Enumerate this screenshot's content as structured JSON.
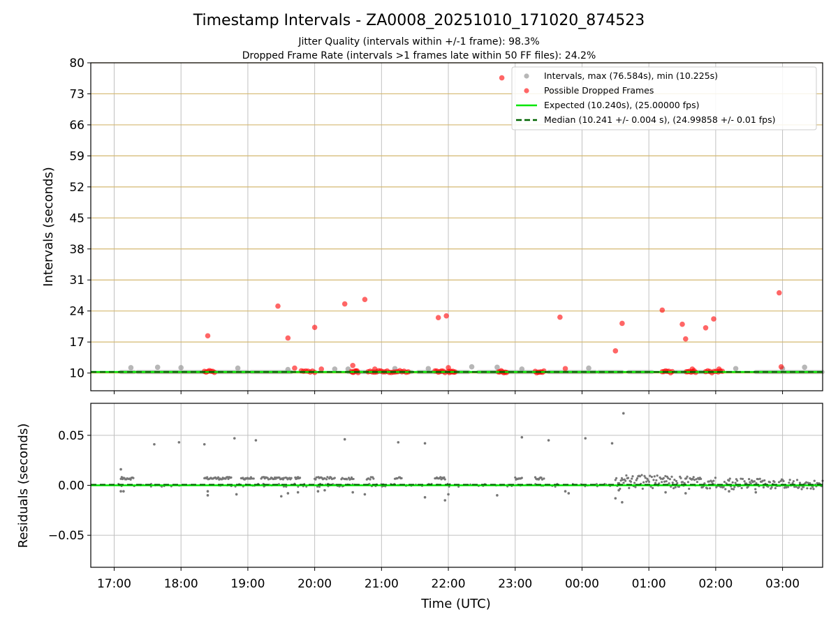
{
  "chart_data": {
    "type": "scatter",
    "title": "Timestamp Intervals - ZA0008_20251010_171020_874523",
    "subtitles": [
      "Jitter Quality (intervals within +/-1 frame): 98.3%",
      "Dropped Frame Rate (intervals >1 frames late within 50 FF files): 24.2%"
    ],
    "xlabel": "Time (UTC)",
    "x_unit": "hours since 17:00 UTC (10 Oct)",
    "xlim": [
      -0.35,
      10.6
    ],
    "xticks": [
      {
        "value": 0,
        "label": "17:00"
      },
      {
        "value": 1,
        "label": "18:00"
      },
      {
        "value": 2,
        "label": "19:00"
      },
      {
        "value": 3,
        "label": "20:00"
      },
      {
        "value": 4,
        "label": "21:00"
      },
      {
        "value": 5,
        "label": "22:00"
      },
      {
        "value": 6,
        "label": "23:00"
      },
      {
        "value": 7,
        "label": "00:00"
      },
      {
        "value": 8,
        "label": "01:00"
      },
      {
        "value": 9,
        "label": "02:00"
      },
      {
        "value": 10,
        "label": "03:00"
      }
    ],
    "top_panel": {
      "ylabel": "Intervals (seconds)",
      "ylim": [
        6.0,
        80.0
      ],
      "yticks": [
        10,
        17,
        24,
        31,
        38,
        45,
        52,
        59,
        66,
        73,
        80
      ],
      "gridline_color": "#d4b870",
      "expected_line": {
        "value": 10.24,
        "color": "#00e600",
        "name": "Expected (10.240s), (25.00000 fps)"
      },
      "median_line": {
        "value": 10.241,
        "color": "#006400",
        "name": "Median (10.241 +/- 0.004 s), (24.99858 +/- 0.01 fps)"
      },
      "intervals": {
        "name": "Intervals, max (76.584s), min (10.225s)",
        "color": "#999999",
        "band_segments": [
          [
            0.1,
            0.3
          ],
          [
            0.35,
            1.35
          ],
          [
            1.5,
            2.0
          ],
          [
            2.05,
            2.65
          ],
          [
            3.5,
            4.45
          ],
          [
            4.55,
            5.3
          ],
          [
            5.45,
            6.4
          ],
          [
            6.5,
            7.2
          ],
          [
            7.25,
            7.6
          ],
          [
            7.7,
            8.05
          ],
          [
            8.4,
            8.95
          ],
          [
            9.6,
            10.6
          ]
        ],
        "outliers": [
          {
            "x": 0.25,
            "y": 11.2
          },
          {
            "x": 0.65,
            "y": 11.3
          },
          {
            "x": 1.0,
            "y": 11.2
          },
          {
            "x": 1.85,
            "y": 11.1
          },
          {
            "x": 2.6,
            "y": 10.8
          },
          {
            "x": 3.5,
            "y": 10.9
          },
          {
            "x": 4.2,
            "y": 11.0
          },
          {
            "x": 4.7,
            "y": 11.0
          },
          {
            "x": 5.35,
            "y": 11.4
          },
          {
            "x": 5.73,
            "y": 11.3
          },
          {
            "x": 6.1,
            "y": 10.9
          },
          {
            "x": 7.1,
            "y": 11.1
          },
          {
            "x": 9.3,
            "y": 11.0
          },
          {
            "x": 10.0,
            "y": 11.0
          },
          {
            "x": 10.33,
            "y": 11.3
          },
          {
            "x": 3.3,
            "y": 10.9
          }
        ]
      },
      "dropped_frames": {
        "name": "Possible Dropped Frames",
        "color": "#ff0000",
        "clusters": [
          [
            1.35,
            1.5
          ],
          [
            2.8,
            3.0
          ],
          [
            3.55,
            3.65
          ],
          [
            3.8,
            4.4
          ],
          [
            4.8,
            4.95
          ],
          [
            5.0,
            5.1
          ],
          [
            5.75,
            5.87
          ],
          [
            6.3,
            6.43
          ],
          [
            8.2,
            8.35
          ],
          [
            8.56,
            8.7
          ],
          [
            8.85,
            9.1
          ]
        ],
        "points": [
          {
            "x": 1.4,
            "y": 18.4
          },
          {
            "x": 2.45,
            "y": 25.1
          },
          {
            "x": 2.6,
            "y": 17.9
          },
          {
            "x": 3.0,
            "y": 20.3
          },
          {
            "x": 3.45,
            "y": 25.6
          },
          {
            "x": 3.57,
            "y": 11.7
          },
          {
            "x": 3.75,
            "y": 26.6
          },
          {
            "x": 4.85,
            "y": 22.5
          },
          {
            "x": 4.97,
            "y": 22.9
          },
          {
            "x": 5.8,
            "y": 76.6
          },
          {
            "x": 6.67,
            "y": 22.6
          },
          {
            "x": 6.75,
            "y": 11.0
          },
          {
            "x": 7.5,
            "y": 15.0
          },
          {
            "x": 7.6,
            "y": 21.2
          },
          {
            "x": 8.2,
            "y": 24.2
          },
          {
            "x": 8.5,
            "y": 21.0
          },
          {
            "x": 8.55,
            "y": 17.7
          },
          {
            "x": 8.85,
            "y": 20.2
          },
          {
            "x": 8.97,
            "y": 22.2
          },
          {
            "x": 9.95,
            "y": 28.1
          },
          {
            "x": 9.98,
            "y": 11.4
          },
          {
            "x": 2.7,
            "y": 11.1
          },
          {
            "x": 3.1,
            "y": 10.9
          },
          {
            "x": 3.9,
            "y": 10.9
          },
          {
            "x": 5.0,
            "y": 11.2
          },
          {
            "x": 8.65,
            "y": 10.9
          },
          {
            "x": 9.05,
            "y": 10.9
          }
        ]
      }
    },
    "bottom_panel": {
      "ylabel": "Residuals (seconds)",
      "ylim": [
        -0.082,
        0.082
      ],
      "yticks": [
        {
          "value": -0.05,
          "label": "−0.05"
        },
        {
          "value": 0.0,
          "label": "0.00"
        },
        {
          "value": 0.05,
          "label": "0.05"
        }
      ],
      "zero_line_colors": [
        "#00e600",
        "#006400"
      ],
      "residual_color": "#777777",
      "dense_segments": [
        {
          "range": [
            0.1,
            0.3
          ],
          "level": 0.007
        },
        {
          "range": [
            1.35,
            1.75
          ],
          "level": 0.007
        },
        {
          "range": [
            1.9,
            2.1
          ],
          "level": 0.007
        },
        {
          "range": [
            2.2,
            2.65
          ],
          "level": 0.007
        },
        {
          "range": [
            2.7,
            2.78
          ],
          "level": 0.007
        },
        {
          "range": [
            3.0,
            3.3
          ],
          "level": 0.007
        },
        {
          "range": [
            3.4,
            3.58
          ],
          "level": 0.007
        },
        {
          "range": [
            3.78,
            3.88
          ],
          "level": 0.007
        },
        {
          "range": [
            4.2,
            4.3
          ],
          "level": 0.007
        },
        {
          "range": [
            4.8,
            4.95
          ],
          "level": 0.007
        },
        {
          "range": [
            6.0,
            6.1
          ],
          "level": 0.007
        },
        {
          "range": [
            6.3,
            6.43
          ],
          "level": 0.007
        },
        {
          "range": [
            7.5,
            10.6
          ],
          "level": 0.006
        }
      ],
      "outliers": [
        {
          "x": 0.1,
          "y": 0.016
        },
        {
          "x": 0.1,
          "y": -0.006
        },
        {
          "x": 0.14,
          "y": -0.006
        },
        {
          "x": 0.6,
          "y": 0.041
        },
        {
          "x": 0.97,
          "y": 0.043
        },
        {
          "x": 1.35,
          "y": 0.041
        },
        {
          "x": 1.4,
          "y": -0.006
        },
        {
          "x": 1.4,
          "y": -0.01
        },
        {
          "x": 1.8,
          "y": 0.047
        },
        {
          "x": 1.83,
          "y": -0.009
        },
        {
          "x": 2.12,
          "y": 0.045
        },
        {
          "x": 2.5,
          "y": -0.011
        },
        {
          "x": 2.6,
          "y": -0.008
        },
        {
          "x": 2.75,
          "y": -0.007
        },
        {
          "x": 3.05,
          "y": -0.006
        },
        {
          "x": 3.15,
          "y": -0.005
        },
        {
          "x": 3.45,
          "y": 0.046
        },
        {
          "x": 3.57,
          "y": -0.007
        },
        {
          "x": 3.75,
          "y": -0.009
        },
        {
          "x": 4.25,
          "y": 0.043
        },
        {
          "x": 4.65,
          "y": 0.042
        },
        {
          "x": 4.65,
          "y": -0.012
        },
        {
          "x": 4.95,
          "y": -0.015
        },
        {
          "x": 5.0,
          "y": -0.009
        },
        {
          "x": 5.73,
          "y": -0.01
        },
        {
          "x": 6.1,
          "y": 0.048
        },
        {
          "x": 6.5,
          "y": 0.045
        },
        {
          "x": 6.75,
          "y": -0.006
        },
        {
          "x": 6.8,
          "y": -0.008
        },
        {
          "x": 7.05,
          "y": 0.047
        },
        {
          "x": 7.45,
          "y": 0.042
        },
        {
          "x": 7.5,
          "y": -0.013
        },
        {
          "x": 7.55,
          "y": -0.005
        },
        {
          "x": 7.62,
          "y": 0.072
        },
        {
          "x": 7.6,
          "y": -0.017
        },
        {
          "x": 8.25,
          "y": -0.007
        },
        {
          "x": 8.55,
          "y": -0.008
        },
        {
          "x": 9.2,
          "y": -0.006
        },
        {
          "x": 9.6,
          "y": -0.007
        }
      ]
    },
    "legend": {
      "placement": "top-right",
      "entries": [
        {
          "label": "Intervals, max (76.584s), min (10.225s)",
          "kind": "marker",
          "color": "#999999"
        },
        {
          "label": "Possible Dropped Frames",
          "kind": "marker",
          "color": "#ff0000"
        },
        {
          "label": "Expected (10.240s), (25.00000 fps)",
          "kind": "line",
          "color": "#00e600"
        },
        {
          "label": "Median (10.241 +/- 0.004 s), (24.99858 +/- 0.01 fps)",
          "kind": "dashed",
          "color": "#006400"
        }
      ]
    }
  }
}
